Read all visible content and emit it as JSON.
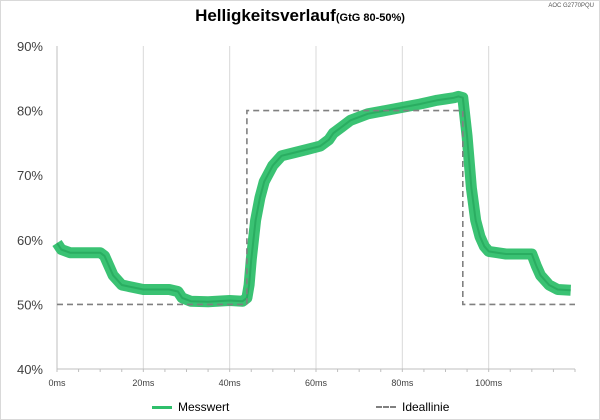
{
  "chart_data": {
    "type": "line",
    "title": "Helligkeitsverlauf",
    "subtitle": "(GtG 80-50%)",
    "source_note": "AOC G2770PQU",
    "xlabel": "",
    "ylabel": "",
    "xlim": [
      0,
      120
    ],
    "ylim": [
      40,
      90
    ],
    "x_ticks": [
      "0ms",
      "20ms",
      "40ms",
      "60ms",
      "80ms",
      "100ms"
    ],
    "x_tick_values": [
      0,
      20,
      40,
      60,
      80,
      100
    ],
    "y_ticks": [
      "40%",
      "50%",
      "60%",
      "70%",
      "80%",
      "90%"
    ],
    "y_tick_values": [
      40,
      50,
      60,
      70,
      80,
      90
    ],
    "grid": "vertical",
    "legend_position": "bottom",
    "series": [
      {
        "name": "Messwert",
        "color": "#2fbf6b",
        "style": "solid",
        "x": [
          0,
          1,
          3,
          10,
          11,
          12,
          13,
          15,
          20,
          26,
          28,
          29,
          31,
          35,
          40,
          43,
          44,
          44.5,
          45,
          46,
          47,
          48,
          50,
          52,
          55,
          58,
          61,
          63,
          64,
          66,
          68,
          72,
          76,
          80,
          84,
          86,
          88,
          90,
          92,
          93,
          94,
          95,
          96,
          97,
          98,
          99,
          100,
          102,
          104,
          110,
          111,
          112,
          114,
          116,
          119
        ],
        "y": [
          59.5,
          58.5,
          58,
          58,
          57.5,
          56,
          54.5,
          53,
          52.3,
          52.3,
          52,
          51,
          50.5,
          50.4,
          50.6,
          50.5,
          51,
          53,
          57,
          63,
          66.5,
          69,
          71.5,
          73,
          73.5,
          74,
          74.5,
          75.5,
          76.5,
          77.5,
          78.5,
          79.5,
          80,
          80.5,
          81,
          81.3,
          81.6,
          81.8,
          82,
          82.2,
          82,
          76,
          68,
          63,
          60.5,
          59,
          58.2,
          58,
          57.8,
          57.8,
          56,
          54.5,
          53,
          52.3,
          52.2
        ]
      },
      {
        "name": "Ideallinie",
        "color": "#808080",
        "style": "dashed",
        "x": [
          0,
          44,
          44,
          94,
          94,
          120
        ],
        "y": [
          50,
          50,
          80,
          80,
          50,
          50
        ]
      }
    ]
  }
}
